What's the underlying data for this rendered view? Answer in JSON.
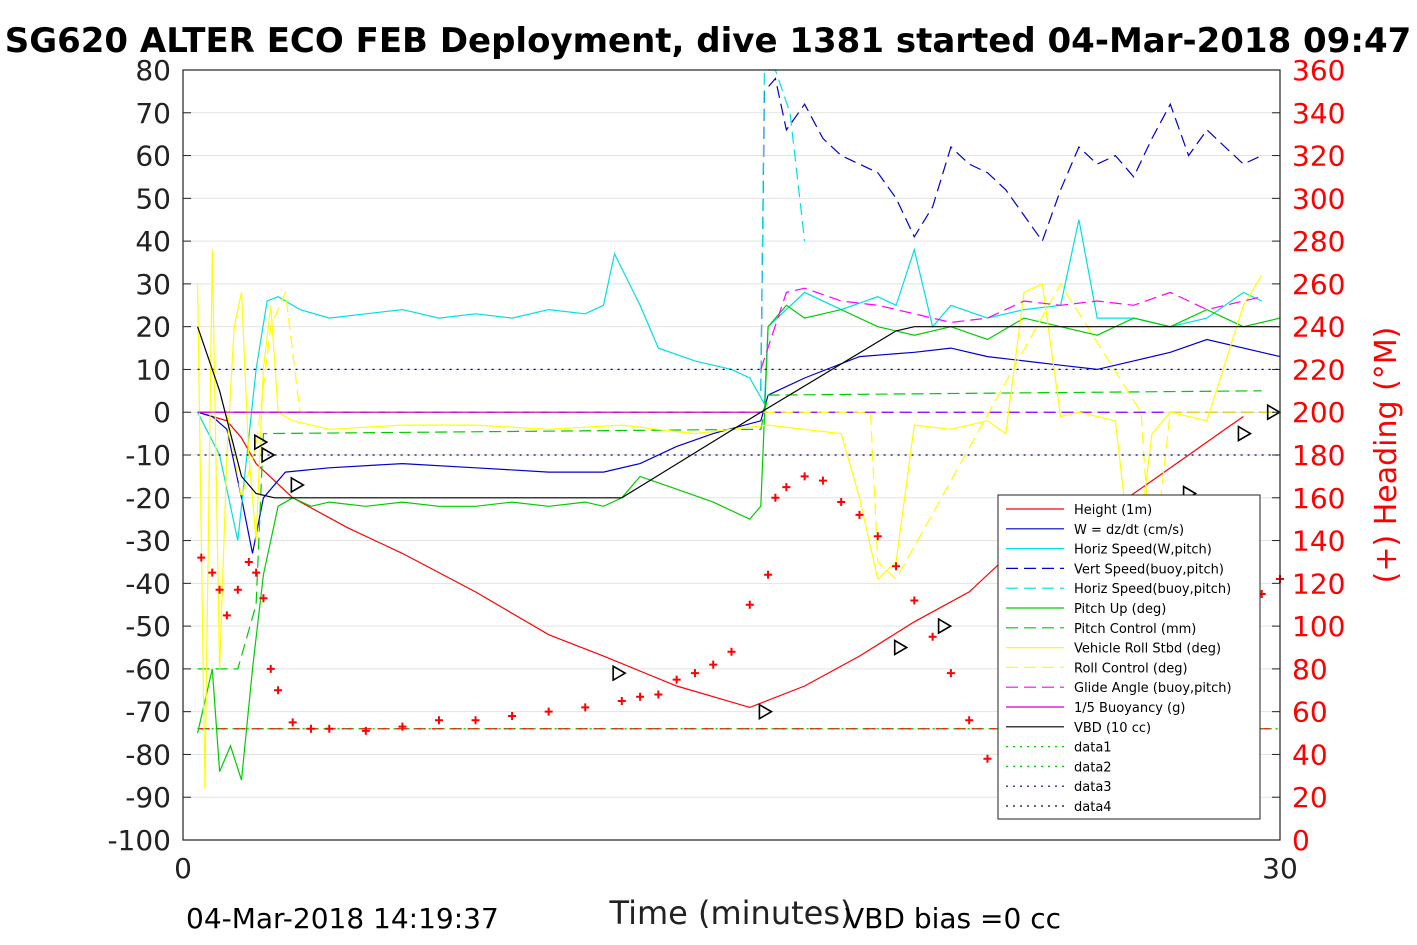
{
  "chart_data": {
    "type": "line",
    "title": "SG620 ALTER ECO FEB Deployment, dive 1381 started 04-Mar-2018 09:47",
    "xlabel": "Time (minutes)",
    "ylabel_right": "(+) Heading (°M)",
    "xlim": [
      0,
      30
    ],
    "ylim": [
      -100,
      80
    ],
    "ylim_right": [
      0,
      360
    ],
    "x_ticks": [
      "0",
      "30"
    ],
    "y_ticks": [
      "80",
      "70",
      "60",
      "50",
      "40",
      "30",
      "20",
      "10",
      "0",
      "-10",
      "-20",
      "-30",
      "-40",
      "-50",
      "-60",
      "-70",
      "-80",
      "-90",
      "-100"
    ],
    "y_right_ticks": [
      "360",
      "340",
      "320",
      "300",
      "280",
      "260",
      "240",
      "220",
      "200",
      "180",
      "160",
      "140",
      "120",
      "100",
      "80",
      "60",
      "40",
      "20",
      "0"
    ],
    "grid": true,
    "legend_position": "lower-right",
    "series": [
      {
        "name": "Height (1m)",
        "color": "#ff0000",
        "style": "solid",
        "x": [
          0.4,
          0.8,
          1.2,
          1.6,
          2.0,
          3.0,
          4.5,
          6.0,
          8.0,
          10.0,
          11.5,
          13.5,
          15.5,
          17.0,
          18.5,
          20.0,
          21.5,
          22.5,
          24.0,
          25.5,
          26.5,
          27.5,
          28.5,
          29.0
        ],
        "values": [
          0,
          -1,
          -2,
          -6,
          -12,
          -20,
          -27,
          -33,
          -42,
          -52,
          -57,
          -64,
          -69,
          -64,
          -57,
          -49,
          -42,
          -34,
          -28,
          -22,
          -16,
          -10,
          -4,
          -1
        ]
      },
      {
        "name": "W = dz/dt (cm/s)",
        "color": "#0000cc",
        "style": "solid",
        "x": [
          0.4,
          0.8,
          1.2,
          1.6,
          1.9,
          2.2,
          2.8,
          4.0,
          6.0,
          8.0,
          10.0,
          11.5,
          12.5,
          13.5,
          14.5,
          15.8,
          16.0,
          17.0,
          18.5,
          20.0,
          21.0,
          22.0,
          23.0,
          24.0,
          25.0,
          26.0,
          27.0,
          28.0,
          29.5,
          30.0
        ],
        "values": [
          0,
          -1,
          -4,
          -20,
          -33,
          -20,
          -14,
          -13,
          -12,
          -13,
          -14,
          -14,
          -12,
          -8,
          -5,
          -2,
          4,
          8,
          13,
          14,
          15,
          13,
          12,
          11,
          10,
          12,
          14,
          17,
          14,
          13
        ]
      },
      {
        "name": "Horiz Speed(W,pitch)",
        "color": "#00e0e0",
        "style": "solid",
        "x": [
          0.4,
          1.0,
          1.5,
          2.0,
          2.3,
          2.6,
          3.2,
          4.0,
          5.0,
          6.0,
          7.0,
          8.0,
          9.0,
          10.0,
          11.0,
          11.5,
          11.8,
          12.5,
          13.0,
          14.0,
          15.0,
          15.5,
          15.9,
          16.0,
          17.0,
          18.0,
          19.0,
          19.5,
          20.0,
          20.5,
          21.0,
          22.0,
          23.0,
          24.0,
          24.5,
          25.0,
          26.0,
          27.0,
          28.0,
          29.0,
          29.5
        ],
        "values": [
          0,
          -10,
          -30,
          10,
          26,
          27,
          24,
          22,
          23,
          24,
          22,
          23,
          22,
          24,
          23,
          25,
          37,
          25,
          15,
          12,
          10,
          8,
          2,
          20,
          28,
          24,
          27,
          25,
          38,
          20,
          25,
          22,
          24,
          25,
          45,
          22,
          22,
          20,
          22,
          28,
          26
        ]
      },
      {
        "name": "Vert Speed(buoy,pitch)",
        "color": "#0000cc",
        "style": "dash",
        "x": [
          15.8,
          15.9,
          16.2,
          16.5,
          17.0,
          17.5,
          18.0,
          18.5,
          19.0,
          19.5,
          20.0,
          20.5,
          21.0,
          21.5,
          22.0,
          22.5,
          23.0,
          23.5,
          24.0,
          24.5,
          25.0,
          25.5,
          26.0,
          26.5,
          27.0,
          27.5,
          28.0,
          28.5,
          29.0,
          29.5
        ],
        "values": [
          5,
          75,
          78,
          66,
          72,
          64,
          60,
          58,
          56,
          50,
          41,
          48,
          62,
          58,
          56,
          52,
          46,
          40,
          52,
          62,
          58,
          60,
          55,
          64,
          72,
          60,
          66,
          62,
          58,
          60
        ]
      },
      {
        "name": "Horiz Speed(buoy,pitch)",
        "color": "#00e0e0",
        "style": "dash",
        "x": [
          15.8,
          15.9,
          16.2,
          16.6,
          17.0
        ],
        "values": [
          5,
          80,
          80,
          70,
          40
        ]
      },
      {
        "name": "Pitch Up (deg)",
        "color": "#00cc00",
        "style": "solid",
        "x": [
          0.4,
          0.8,
          1.0,
          1.3,
          1.6,
          1.9,
          2.2,
          2.6,
          3.0,
          3.5,
          4.0,
          5.0,
          6.0,
          7.0,
          8.0,
          9.0,
          10.0,
          11.0,
          11.5,
          12.0,
          12.5,
          13.5,
          14.5,
          15.5,
          15.8,
          16.0,
          16.5,
          17.0,
          18.0,
          19.0,
          20.0,
          21.0,
          22.0,
          23.0,
          24.0,
          25.0,
          26.0,
          27.0,
          28.0,
          29.0,
          30.0
        ],
        "values": [
          -75,
          -60,
          -84,
          -78,
          -86,
          -60,
          -38,
          -22,
          -20,
          -22,
          -21,
          -22,
          -21,
          -22,
          -22,
          -21,
          -22,
          -21,
          -22,
          -20,
          -15,
          -18,
          -21,
          -25,
          -22,
          20,
          25,
          22,
          24,
          20,
          18,
          20,
          17,
          22,
          20,
          18,
          22,
          20,
          24,
          20,
          22
        ]
      },
      {
        "name": "Pitch Control (mm)",
        "color": "#00cc00",
        "style": "dash",
        "x": [
          0.4,
          1.5,
          2.0,
          2.2,
          15.8,
          16.0,
          29.5
        ],
        "values": [
          -60,
          -60,
          -45,
          -5,
          -4,
          4,
          5
        ]
      },
      {
        "name": "Vehicle Roll Stbd (deg)",
        "color": "#ffff00",
        "style": "solid",
        "x": [
          0.4,
          0.6,
          0.8,
          1.0,
          1.2,
          1.4,
          1.6,
          1.8,
          2.0,
          2.2,
          2.4,
          2.6,
          3.0,
          4.0,
          6.0,
          8.0,
          10.0,
          12.0,
          14.0,
          16.0,
          18.0,
          18.5,
          19.0,
          19.5,
          20.0,
          21.0,
          22.0,
          22.5,
          23.0,
          23.5,
          24.0,
          24.5,
          25.0,
          25.5,
          26.0,
          26.5,
          27.0,
          27.5,
          28.0,
          29.0,
          29.5
        ],
        "values": [
          30,
          -88,
          38,
          -60,
          -10,
          20,
          28,
          -10,
          -30,
          10,
          25,
          0,
          -2,
          -4,
          -3,
          -3,
          -4,
          -3,
          -5,
          -3,
          -5,
          -20,
          -39,
          -35,
          -3,
          -4,
          -2,
          -5,
          28,
          30,
          -1,
          0,
          -1,
          -2,
          -40,
          -5,
          0,
          -1,
          -2,
          25,
          32
        ]
      },
      {
        "name": "Roll Control (deg)",
        "color": "#ffff00",
        "style": "dash",
        "x": [
          1.2,
          1.6,
          2.0,
          2.4,
          2.8,
          3.2,
          3.6,
          18.8,
          19.0,
          19.5,
          24.0,
          26.2,
          26.5,
          27.0,
          29.8
        ],
        "values": [
          0,
          -20,
          -8,
          20,
          28,
          0,
          0,
          0,
          -35,
          -39,
          30,
          0,
          -38,
          0,
          0
        ]
      },
      {
        "name": "Glide Angle (buoy,pitch)",
        "color": "#ff00ff",
        "style": "dash",
        "x": [
          15.8,
          16.5,
          17.0,
          18.0,
          19.0,
          20.0,
          21.0,
          22.0,
          23.0,
          24.0,
          25.0,
          26.0,
          27.0,
          28.0,
          29.0,
          29.5
        ],
        "values": [
          10,
          28,
          29,
          26,
          25,
          23,
          21,
          22,
          26,
          25,
          26,
          25,
          28,
          24,
          26,
          27
        ]
      },
      {
        "name": "1/5 Buoyancy (g)",
        "color": "#cc00cc",
        "style": "solid",
        "x": [
          0.4,
          12.0,
          15.0,
          15.8
        ],
        "values": [
          0,
          0,
          0,
          0
        ]
      },
      {
        "name": "VBD (10 cc)",
        "color": "#000000",
        "style": "solid",
        "x": [
          0.4,
          1.0,
          1.6,
          2.0,
          2.5,
          12.0,
          15.8,
          16.0,
          19.5,
          20.0,
          30.0
        ],
        "values": [
          20,
          5,
          -15,
          -19,
          -20,
          -20,
          0,
          1,
          19,
          20,
          20
        ]
      },
      {
        "name": "data1",
        "color": "#00cc00",
        "style": "dot",
        "x": [
          0.4,
          30.0
        ],
        "values": [
          -74,
          -74
        ]
      },
      {
        "name": "data2",
        "color": "#00cc00",
        "style": "dot",
        "x": [
          0.4,
          30.0
        ],
        "values": [
          -74,
          -74
        ]
      },
      {
        "name": "data3",
        "color": "#000080",
        "style": "dot",
        "x": [
          0.4,
          30.0
        ],
        "values": [
          10,
          10
        ]
      },
      {
        "name": "data4",
        "color": "#000080",
        "style": "dot",
        "x": [
          0.4,
          30.0
        ],
        "values": [
          -10,
          -10
        ]
      }
    ],
    "reference_lines": [
      {
        "y": -74,
        "color": "#ff0000",
        "style": "dash"
      },
      {
        "y": 0,
        "color": "#8000ff",
        "style": "dash"
      }
    ],
    "depth_markers": {
      "color": "#000000",
      "x": [
        2.1,
        2.3,
        3.1,
        11.9,
        15.9,
        19.6,
        20.8,
        23.3,
        24.7,
        26.6,
        27.5,
        29.0,
        29.8
      ],
      "values": [
        -7,
        -10,
        -17,
        -61,
        -70,
        -55,
        -50,
        -38,
        -30,
        -22,
        -19,
        -5,
        0
      ]
    },
    "heading_points": {
      "color": "#ff0000",
      "axis": "right",
      "x": [
        0.5,
        0.8,
        1.0,
        1.2,
        1.5,
        1.8,
        2.0,
        2.2,
        2.4,
        2.6,
        3.0,
        3.5,
        4.0,
        5.0,
        6.0,
        7.0,
        8.0,
        9.0,
        10.0,
        11.0,
        12.0,
        12.5,
        13.0,
        13.5,
        14.0,
        14.5,
        15.0,
        15.5,
        16.0,
        16.2,
        16.5,
        17.0,
        17.5,
        18.0,
        18.5,
        19.0,
        19.5,
        20.0,
        20.5,
        21.0,
        21.5,
        22.0,
        22.5,
        23.0,
        23.5,
        24.0,
        24.5,
        25.0,
        25.5,
        26.0,
        26.5,
        27.0,
        27.5,
        28.0,
        28.5,
        29.0,
        29.5,
        30.0
      ],
      "values": [
        132,
        125,
        117,
        105,
        117,
        130,
        125,
        113,
        80,
        70,
        55,
        52,
        52,
        51,
        53,
        56,
        56,
        58,
        60,
        62,
        65,
        67,
        68,
        75,
        78,
        82,
        88,
        110,
        124,
        160,
        165,
        170,
        168,
        158,
        152,
        142,
        128,
        112,
        95,
        78,
        56,
        38,
        28,
        22,
        20,
        27,
        45,
        78,
        83,
        83,
        90,
        62,
        53,
        45,
        42,
        50,
        115,
        122
      ]
    },
    "footer_left": "04-Mar-2018 14:19:37",
    "footer_right": "VBD bias =0 cc"
  }
}
